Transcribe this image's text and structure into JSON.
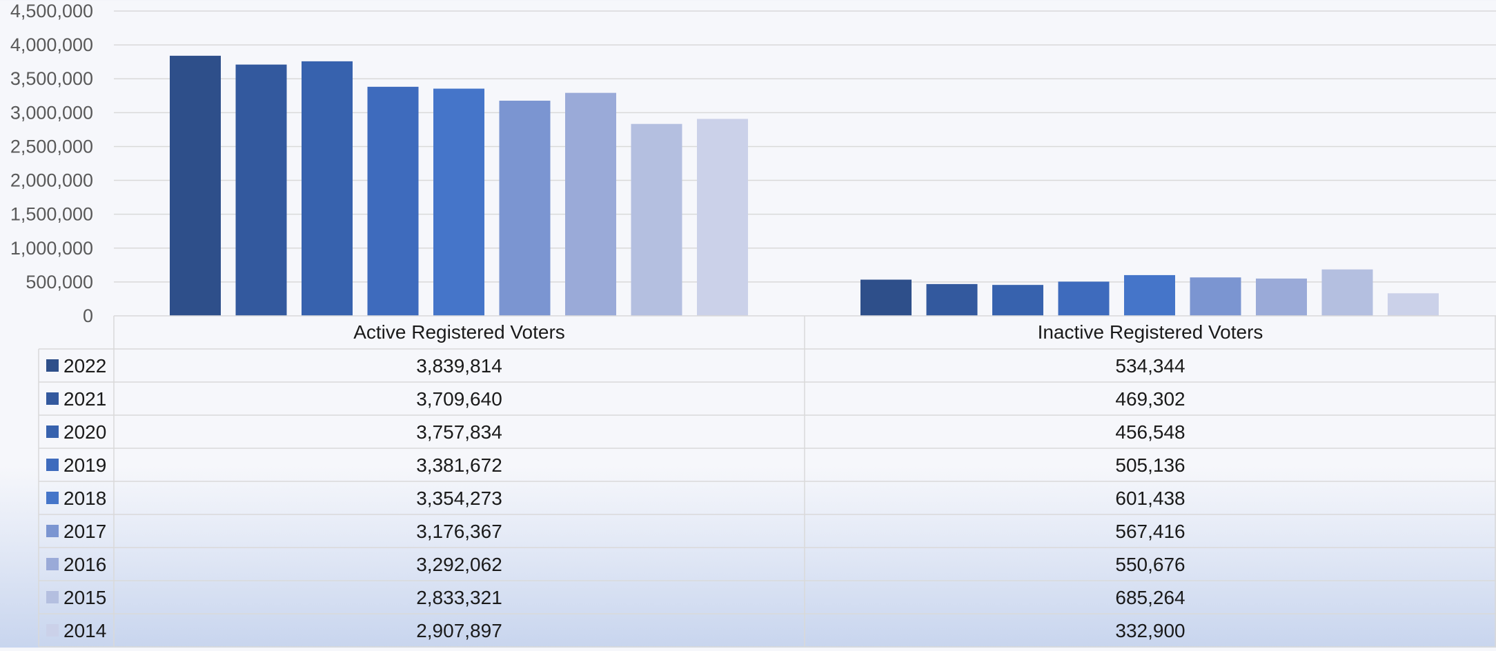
{
  "colors": {
    "gridline": "#d9d9d9",
    "tick_label": "#595959",
    "table_text": "#1a1a1a",
    "table_border": "#d9d9d9",
    "series": [
      "#2e4f8a",
      "#33599e",
      "#3762ae",
      "#3e6bbd",
      "#4575c9",
      "#7b95d1",
      "#9aaad8",
      "#b4bfe0",
      "#cbd1e9"
    ]
  },
  "chart_data": {
    "type": "bar",
    "title": "",
    "xlabel": "",
    "ylabel": "",
    "ylim": [
      0,
      4500000
    ],
    "ytick_step": 500000,
    "y_ticks": [
      "0",
      "500,000",
      "1,000,000",
      "1,500,000",
      "2,000,000",
      "2,500,000",
      "3,000,000",
      "3,500,000",
      "4,000,000",
      "4,500,000"
    ],
    "grid": true,
    "legend": "data-table",
    "categories": [
      "Active Registered Voters",
      "Inactive Registered Voters"
    ],
    "series": [
      {
        "name": "2022",
        "values": [
          3839814,
          534344
        ],
        "labels": [
          "3,839,814",
          "534,344"
        ]
      },
      {
        "name": "2021",
        "values": [
          3709640,
          469302
        ],
        "labels": [
          "3,709,640",
          "469,302"
        ]
      },
      {
        "name": "2020",
        "values": [
          3757834,
          456548
        ],
        "labels": [
          "3,757,834",
          "456,548"
        ]
      },
      {
        "name": "2019",
        "values": [
          3381672,
          505136
        ],
        "labels": [
          "3,381,672",
          "505,136"
        ]
      },
      {
        "name": "2018",
        "values": [
          3354273,
          601438
        ],
        "labels": [
          "3,354,273",
          "601,438"
        ]
      },
      {
        "name": "2017",
        "values": [
          3176367,
          567416
        ],
        "labels": [
          "3,176,367",
          "567,416"
        ]
      },
      {
        "name": "2016",
        "values": [
          3292062,
          550676
        ],
        "labels": [
          "3,292,062",
          "550,676"
        ]
      },
      {
        "name": "2015",
        "values": [
          2833321,
          685264
        ],
        "labels": [
          "2,833,321",
          "685,264"
        ]
      },
      {
        "name": "2014",
        "values": [
          2907897,
          332900
        ],
        "labels": [
          "2,907,897",
          "332,900"
        ]
      }
    ]
  }
}
